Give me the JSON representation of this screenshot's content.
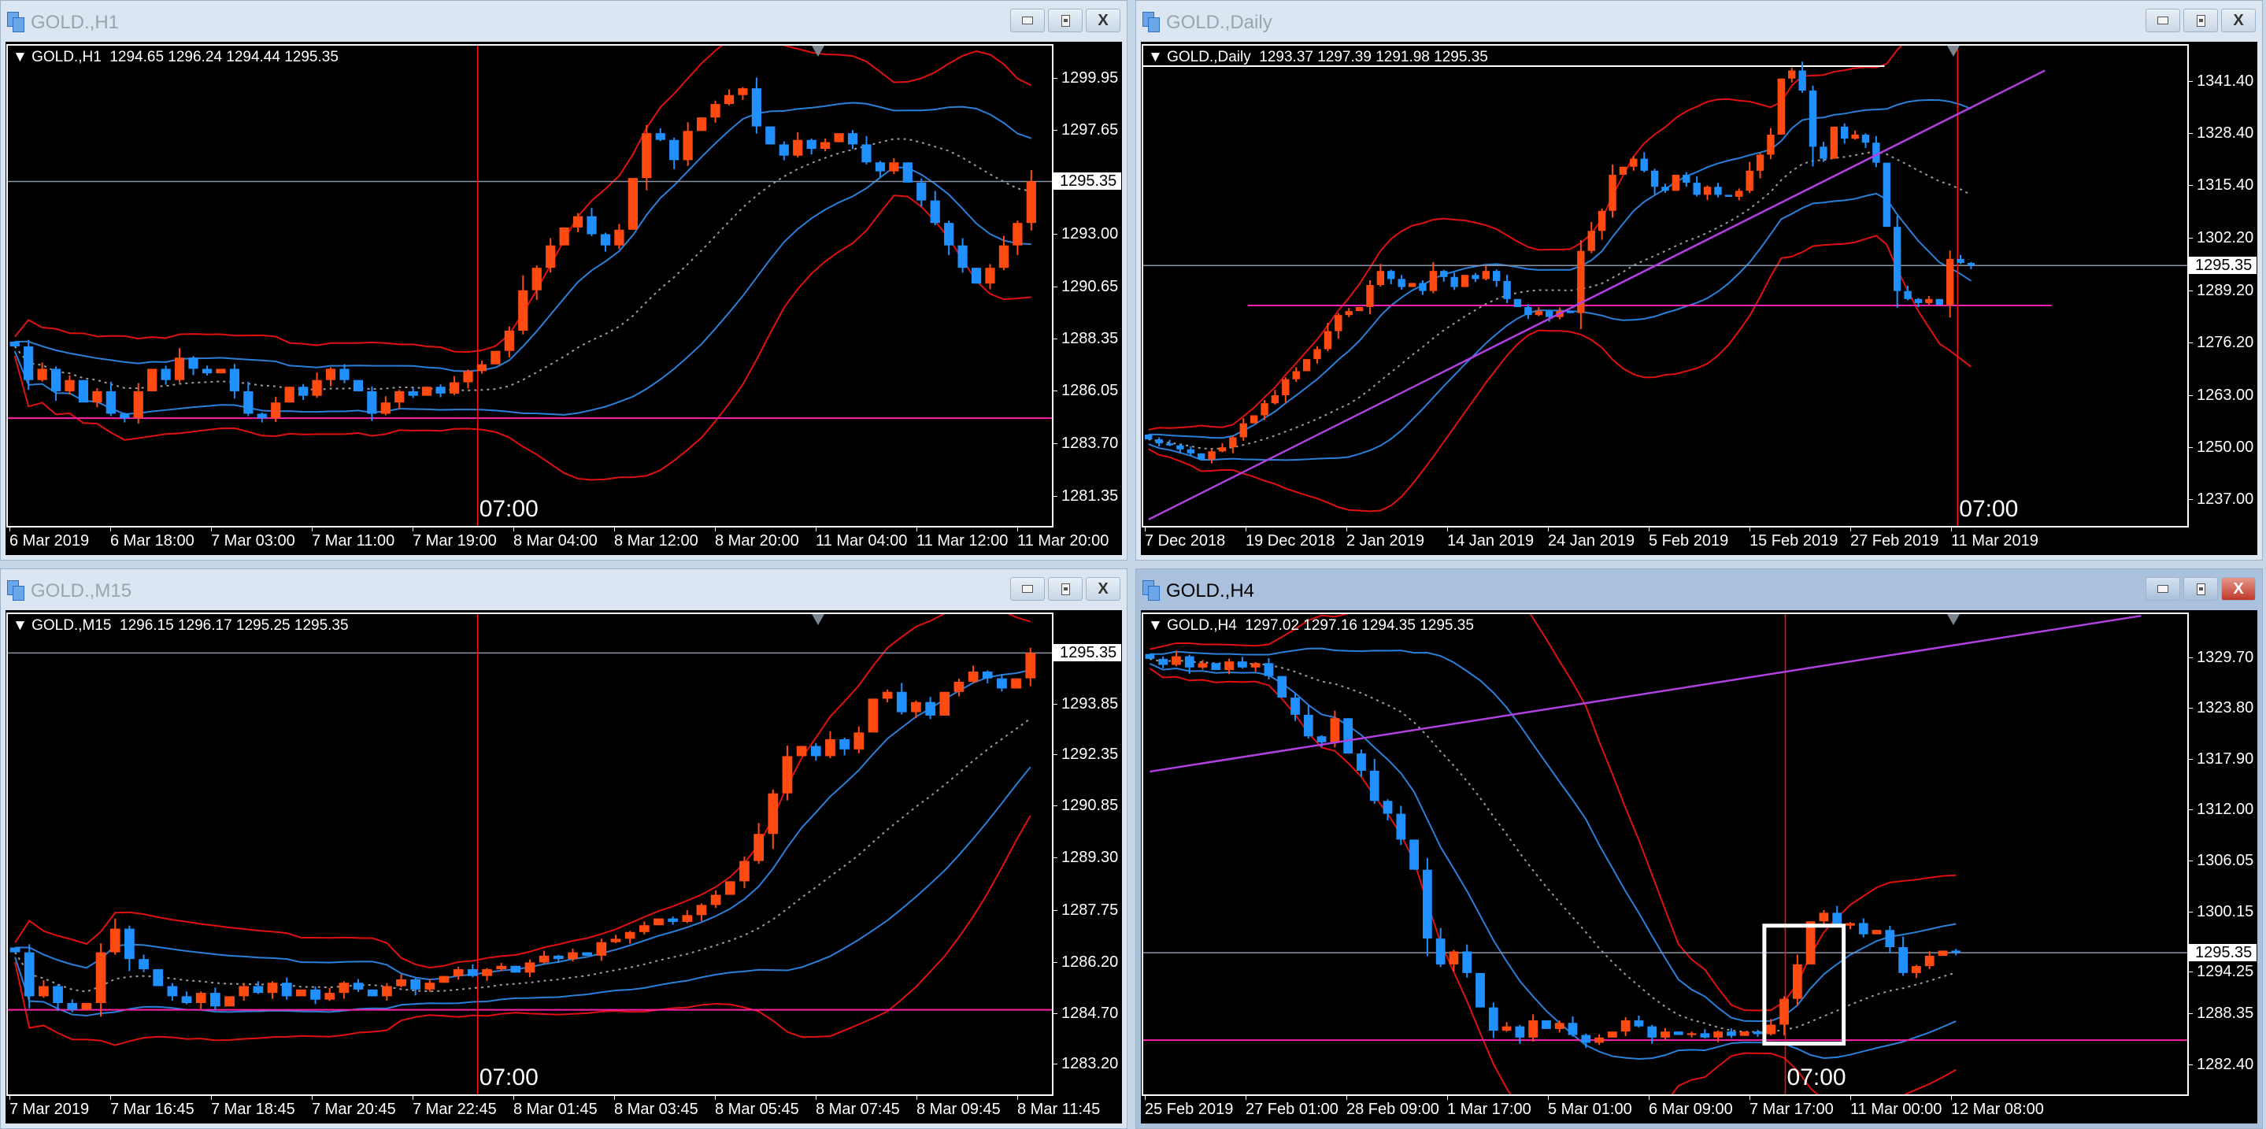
{
  "colors": {
    "bull": "#ff4a12",
    "bear": "#2090ff",
    "upper_band": "#e01010",
    "lower_band": "#2a7fd8",
    "mid_band": "#9a9a9a",
    "hline": "#ff22aa",
    "trendline": "#b040e0",
    "vline": "#ff1010"
  },
  "icons": {
    "app": "chart-window-icon",
    "minimize": "minimize-icon",
    "maximize": "maximize-icon",
    "close": "close-icon"
  },
  "charts": [
    {
      "window_title": "GOLD.,H1",
      "header": "GOLD.,H1  1294.65 1296.24 1294.44 1295.35",
      "current_price": "1295.35",
      "vline_label": "07:00",
      "chart_data": {
        "type": "candlestick",
        "ylim": [
          1280.0,
          1301.4
        ],
        "price_ticks": [
          "1299.95",
          "1297.65",
          "1293.00",
          "1290.65",
          "1288.35",
          "1286.05",
          "1283.70",
          "1281.35"
        ],
        "time_labels": [
          "6 Mar 2019",
          "6 Mar 18:00",
          "7 Mar 03:00",
          "7 Mar 11:00",
          "7 Mar 19:00",
          "8 Mar 04:00",
          "8 Mar 12:00",
          "8 Mar 20:00",
          "11 Mar 04:00",
          "11 Mar 12:00",
          "11 Mar 20:00"
        ],
        "closes": [
          1288,
          1286.5,
          1287,
          1286,
          1286.5,
          1285.5,
          1286,
          1285,
          1284.8,
          1286,
          1287,
          1286.5,
          1287.5,
          1287,
          1286.8,
          1287,
          1286,
          1285,
          1284.8,
          1285.5,
          1286.2,
          1285.8,
          1286.5,
          1287,
          1286.5,
          1286,
          1285,
          1285.5,
          1286,
          1285.8,
          1286.2,
          1285.9,
          1286.4,
          1286.9,
          1287.2,
          1287.8,
          1288.7,
          1290.5,
          1291.5,
          1292.5,
          1293.3,
          1293.8,
          1293.0,
          1292.5,
          1293.2,
          1295.5,
          1297.5,
          1297.2,
          1296.3,
          1297.6,
          1298.2,
          1298.8,
          1299.2,
          1299.5,
          1297.8,
          1297.0,
          1296.5,
          1297.2,
          1296.8,
          1297.1,
          1297.5,
          1297.0,
          1296.2,
          1295.8,
          1296.2,
          1295.3,
          1294.5,
          1293.5,
          1292.5,
          1291.5,
          1290.8,
          1291.5,
          1292.5,
          1293.5,
          1295.35
        ],
        "hlines": [
          {
            "price": 1284.8
          }
        ]
      }
    },
    {
      "window_title": "GOLD.,Daily",
      "header": "GOLD.,Daily  1293.37 1297.39 1291.98 1295.35",
      "current_price": "1295.35",
      "vline_label": "07:00",
      "chart_data": {
        "type": "candlestick",
        "ylim": [
          1230.4,
          1350.2
        ],
        "price_ticks": [
          "1341.40",
          "1328.40",
          "1315.40",
          "1302.20",
          "1289.20",
          "1276.20",
          "1263.00",
          "1250.00",
          "1237.00"
        ],
        "time_labels": [
          "7 Dec 2018",
          "19 Dec 2018",
          "2 Jan 2019",
          "14 Jan 2019",
          "24 Jan 2019",
          "5 Feb 2019",
          "15 Feb 2019",
          "27 Feb 2019",
          "11 Mar 2019"
        ],
        "closes": [
          1252,
          1251,
          1250.5,
          1249.5,
          1248.5,
          1247,
          1249,
          1250,
          1252.5,
          1256,
          1258,
          1261,
          1263,
          1267,
          1269,
          1272,
          1274.5,
          1279,
          1283,
          1284,
          1285,
          1290.5,
          1294,
          1292,
          1290,
          1291,
          1289,
          1294,
          1292.5,
          1290,
          1293,
          1292,
          1294,
          1291.5,
          1287,
          1285,
          1283,
          1284,
          1282.5,
          1284,
          1283.5,
          1299,
          1304,
          1309,
          1318,
          1320,
          1322,
          1319,
          1315,
          1314,
          1318,
          1316,
          1313,
          1315,
          1313,
          1312.5,
          1314,
          1319,
          1323,
          1328,
          1342,
          1344,
          1339,
          1325,
          1322,
          1330,
          1327,
          1328,
          1326,
          1321,
          1305,
          1289,
          1287,
          1286,
          1287,
          1285.5,
          1297,
          1296,
          1295.35
        ],
        "hlines": [
          {
            "price": 1285.4,
            "color": "hline",
            "from": 10,
            "to": 87
          },
          {
            "price": 1345.1,
            "color": "white",
            "from": 0,
            "to": 71
          }
        ],
        "trendlines": [
          {
            "from": [
              0,
              1232
            ],
            "to": [
              85,
              1344
            ]
          }
        ]
      }
    },
    {
      "window_title": "GOLD.,M15",
      "header": "GOLD.,M15  1296.15 1296.17 1295.25 1295.35",
      "current_price": "1295.35",
      "vline_label": "07:00",
      "chart_data": {
        "type": "candlestick",
        "ylim": [
          1282.3,
          1296.5
        ],
        "price_ticks": [
          "1293.85",
          "1292.35",
          "1290.85",
          "1289.30",
          "1287.75",
          "1286.20",
          "1284.70",
          "1283.20"
        ],
        "time_labels": [
          "7 Mar 2019",
          "7 Mar 16:45",
          "7 Mar 18:45",
          "7 Mar 20:45",
          "7 Mar 22:45",
          "8 Mar 01:45",
          "8 Mar 03:45",
          "8 Mar 05:45",
          "8 Mar 07:45",
          "8 Mar 09:45",
          "8 Mar 11:45"
        ],
        "closes": [
          1286.5,
          1285.2,
          1285.5,
          1285,
          1284.8,
          1285,
          1286.5,
          1287.2,
          1286.3,
          1286,
          1285.5,
          1285.2,
          1285,
          1285.3,
          1284.9,
          1285.2,
          1285.5,
          1285.3,
          1285.6,
          1285.2,
          1285.4,
          1285.1,
          1285.3,
          1285.6,
          1285.4,
          1285.2,
          1285.5,
          1285.7,
          1285.4,
          1285.6,
          1285.8,
          1286,
          1285.8,
          1286,
          1286.1,
          1285.9,
          1286.2,
          1286.4,
          1286.3,
          1286.5,
          1286.4,
          1286.8,
          1286.9,
          1287.1,
          1287.3,
          1287.5,
          1287.4,
          1287.6,
          1287.9,
          1288.2,
          1288.6,
          1289.2,
          1290.0,
          1291.2,
          1292.3,
          1292.6,
          1292.3,
          1292.8,
          1292.5,
          1293.0,
          1294.0,
          1294.2,
          1293.6,
          1293.9,
          1293.5,
          1294.2,
          1294.5,
          1294.8,
          1294.6,
          1294.3,
          1294.6,
          1295.35
        ],
        "hlines": [
          {
            "price": 1284.8
          }
        ]
      }
    },
    {
      "window_title": "GOLD.,H4",
      "header": "GOLD.,H4  1297.02 1297.16 1294.35 1295.35",
      "current_price": "1295.35",
      "vline_label": "07:00",
      "active": true,
      "chart_data": {
        "type": "candlestick",
        "ylim": [
          1278.9,
          1334.7
        ],
        "price_ticks": [
          "1329.70",
          "1323.80",
          "1317.90",
          "1312.00",
          "1306.05",
          "1300.15",
          "1294.25",
          "1288.35",
          "1282.40"
        ],
        "time_labels": [
          "25 Feb 2019",
          "27 Feb 01:00",
          "28 Feb 09:00",
          "1 Mar 17:00",
          "5 Mar 01:00",
          "6 Mar 09:00",
          "7 Mar 17:00",
          "11 Mar 00:00",
          "12 Mar 08:00"
        ],
        "closes": [
          1329.5,
          1328.8,
          1329.8,
          1328.5,
          1329,
          1328.2,
          1329.2,
          1328.5,
          1329,
          1327.5,
          1325,
          1323,
          1320.5,
          1319.8,
          1322.6,
          1318.5,
          1316.5,
          1313,
          1311.5,
          1308.5,
          1305,
          1297,
          1294,
          1295.5,
          1293,
          1289,
          1286.3,
          1286.8,
          1285.5,
          1287.5,
          1286.5,
          1287.2,
          1285.8,
          1284.9,
          1285.5,
          1286.2,
          1287.5,
          1286.8,
          1285.5,
          1286.2,
          1285.8,
          1286,
          1285.5,
          1286.2,
          1285.7,
          1286.2,
          1285.9,
          1287,
          1290,
          1294,
          1299,
          1300,
          1298.5,
          1298.8,
          1297.5,
          1298,
          1296,
          1293,
          1293.8,
          1295,
          1295.6,
          1295.35
        ],
        "hlines": [
          {
            "price": 1285.2,
            "color": "hline",
            "from": 0,
            "to": 100
          }
        ],
        "trendlines": [
          {
            "from": [
              0,
              1316.4
            ],
            "to": [
              75,
              1334.5
            ]
          }
        ],
        "rectangles": [
          {
            "from_index": 47,
            "to_index": 52,
            "top": 1298.5,
            "bottom": 1284.8
          }
        ]
      }
    }
  ]
}
